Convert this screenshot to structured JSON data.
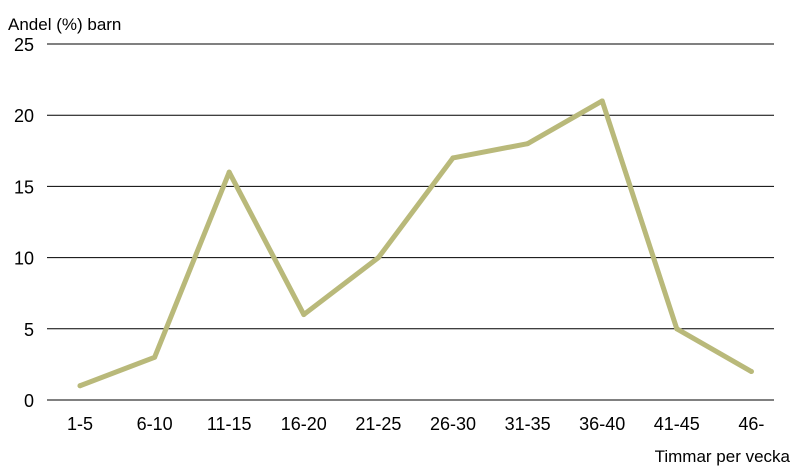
{
  "chart_data": {
    "type": "line",
    "title": "",
    "ylabel": "Andel (%) barn",
    "xlabel": "Timmar per vecka",
    "categories": [
      "1-5",
      "6-10",
      "11-15",
      "16-20",
      "21-25",
      "26-30",
      "31-35",
      "36-40",
      "41-45",
      "46-"
    ],
    "series": [
      {
        "values": [
          1,
          3,
          16,
          6,
          10,
          17,
          18,
          21,
          5,
          2
        ]
      }
    ],
    "ylim": [
      0,
      25
    ],
    "yticks": [
      0,
      5,
      10,
      15,
      20,
      25
    ],
    "grid": true,
    "line_color": "#b9b97a"
  }
}
